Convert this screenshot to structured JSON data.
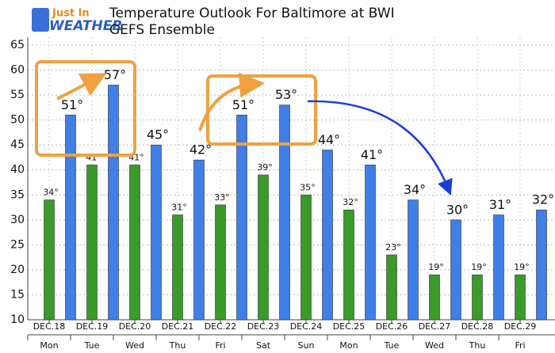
{
  "logo": {
    "line1": "Just In",
    "line2": "WEATHER"
  },
  "chart_data": {
    "type": "bar",
    "title": "Temperature Outlook For Baltimore at BWI",
    "subtitle": "GEFS Ensemble",
    "categories": [
      "DEC.18",
      "DEC.19",
      "DEC.20",
      "DEC.21",
      "DEC.22",
      "DEC.23",
      "DEC.24",
      "DEC.25",
      "DEC.26",
      "DEC.27",
      "DEC.28",
      "DEC.29"
    ],
    "days": [
      "Mon",
      "Tue",
      "Wed",
      "Thu",
      "Fri",
      "Sat",
      "Sun",
      "Mon",
      "Tue",
      "Wed",
      "Thu",
      "Fri"
    ],
    "series": [
      {
        "color": "#3a9a2a",
        "values": [
          34,
          41,
          41,
          31,
          33,
          39,
          35,
          32,
          23,
          19,
          19,
          19
        ],
        "value_labels": [
          "34°",
          "41°",
          "41°",
          "31°",
          "33°",
          "39°",
          "35°",
          "32°",
          "23°",
          "19°",
          "19°",
          "19°"
        ]
      },
      {
        "color": "#3f7fe6",
        "values": [
          51,
          57,
          45,
          42,
          51,
          53,
          44,
          41,
          34,
          30,
          31,
          32
        ],
        "value_labels": [
          "51°",
          "57°",
          "45°",
          "42°",
          "51°",
          "53°",
          "44°",
          "41°",
          "34°",
          "30°",
          "31°",
          "32°"
        ]
      }
    ],
    "ylim": [
      10,
      65
    ],
    "yticks": [
      10,
      15,
      20,
      25,
      30,
      35,
      40,
      45,
      50,
      55,
      60,
      65
    ],
    "grid": true
  }
}
